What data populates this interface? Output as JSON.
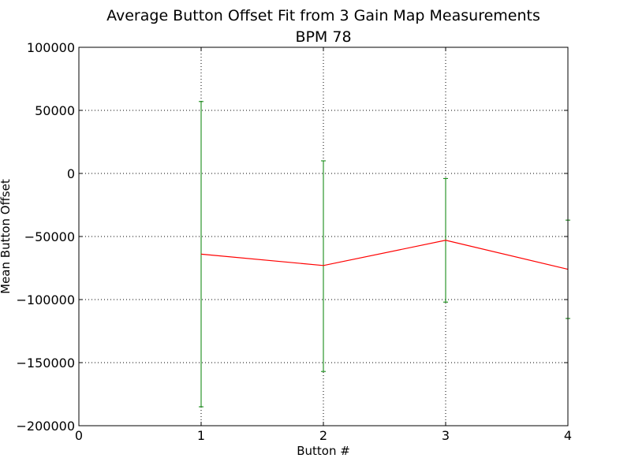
{
  "chart_data": {
    "type": "line",
    "title": "Average Button Offset Fit from 3 Gain Map Measurements",
    "subtitle": "BPM 78",
    "xlabel": "Button #",
    "ylabel": "Mean Button Offset",
    "xlim": [
      0,
      4
    ],
    "ylim": [
      -200000,
      100000
    ],
    "x_ticks": [
      0,
      1,
      2,
      3,
      4
    ],
    "y_ticks": [
      -200000,
      -150000,
      -100000,
      -50000,
      0,
      50000,
      100000
    ],
    "x_tick_labels": [
      "0",
      "1",
      "2",
      "3",
      "4"
    ],
    "y_tick_labels": [
      "−200000",
      "−150000",
      "−100000",
      "−50000",
      "0",
      "50000",
      "100000"
    ],
    "grid": true,
    "series": [
      {
        "x": [
          1,
          2,
          3,
          4
        ],
        "y": [
          -64000,
          -73000,
          -53000,
          -76000
        ],
        "yerr_upper": [
          57000,
          10000,
          -4000,
          -37000
        ],
        "yerr_lower": [
          -185000,
          -157000,
          -102000,
          -115000
        ]
      }
    ],
    "colors": {
      "line": "#ff0000",
      "errorbar": "#008000",
      "grid": "#000000",
      "axes": "#000000"
    }
  }
}
